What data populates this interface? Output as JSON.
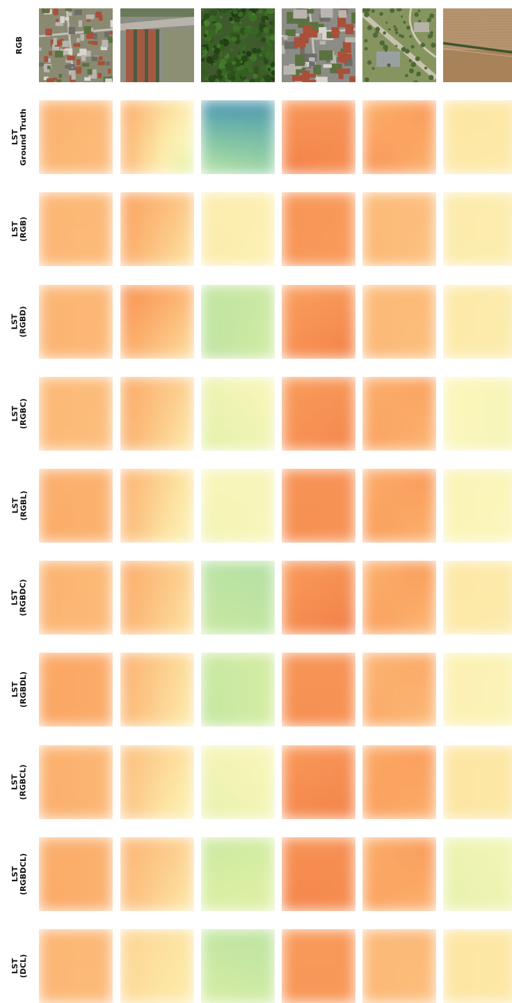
{
  "colormap": [
    "#3a86b4",
    "#72b9a7",
    "#a8dba3",
    "#d8eea2",
    "#fbf6bb",
    "#fde6a4",
    "#fcc584",
    "#fba562",
    "#f58a4e",
    "#e9613c"
  ],
  "rows": [
    {
      "id": "rgb",
      "label_lines": [
        "RGB"
      ],
      "kind": "aerial",
      "tiles": [
        {
          "scene": "residential"
        },
        {
          "scene": "river-buildings"
        },
        {
          "scene": "forest"
        },
        {
          "scene": "dense-urban"
        },
        {
          "scene": "park-road"
        },
        {
          "scene": "farmland"
        }
      ]
    },
    {
      "id": "ground-truth",
      "label_lines": [
        "LST",
        "Ground Truth"
      ],
      "kind": "lst",
      "tiles": [
        {
          "tl": 0.74,
          "tr": 0.71,
          "bl": 0.72,
          "br": 0.7
        },
        {
          "tl": 0.76,
          "tr": 0.52,
          "bl": 0.74,
          "br": 0.3
        },
        {
          "tl": 0.02,
          "tr": 0.03,
          "bl": 0.26,
          "br": 0.2
        },
        {
          "tl": 0.83,
          "tr": 0.86,
          "bl": 0.93,
          "br": 0.88
        },
        {
          "tl": 0.72,
          "tr": 0.84,
          "bl": 0.86,
          "br": 0.72
        },
        {
          "tl": 0.56,
          "tr": 0.55,
          "bl": 0.54,
          "br": 0.53
        }
      ]
    },
    {
      "id": "rgb-pred",
      "label_lines": [
        "LST",
        "(RGB)"
      ],
      "kind": "lst",
      "tiles": [
        {
          "tl": 0.72,
          "tr": 0.71,
          "bl": 0.72,
          "br": 0.7
        },
        {
          "tl": 0.79,
          "tr": 0.66,
          "bl": 0.76,
          "br": 0.55
        },
        {
          "tl": 0.51,
          "tr": 0.49,
          "bl": 0.52,
          "br": 0.48
        },
        {
          "tl": 0.85,
          "tr": 0.82,
          "bl": 0.84,
          "br": 0.82
        },
        {
          "tl": 0.7,
          "tr": 0.7,
          "bl": 0.72,
          "br": 0.67
        },
        {
          "tl": 0.53,
          "tr": 0.51,
          "bl": 0.52,
          "br": 0.5
        }
      ]
    },
    {
      "id": "rgbd-pred",
      "label_lines": [
        "LST",
        "(RGBD)"
      ],
      "kind": "lst",
      "tiles": [
        {
          "tl": 0.72,
          "tr": 0.72,
          "bl": 0.73,
          "br": 0.71
        },
        {
          "tl": 0.86,
          "tr": 0.72,
          "bl": 0.76,
          "br": 0.58
        },
        {
          "tl": 0.28,
          "tr": 0.3,
          "bl": 0.27,
          "br": 0.32
        },
        {
          "tl": 0.8,
          "tr": 0.84,
          "bl": 0.87,
          "br": 0.92
        },
        {
          "tl": 0.7,
          "tr": 0.71,
          "bl": 0.72,
          "br": 0.68
        },
        {
          "tl": 0.54,
          "tr": 0.52,
          "bl": 0.53,
          "br": 0.51
        }
      ]
    },
    {
      "id": "rgbc-pred",
      "label_lines": [
        "LST",
        "(RGBC)"
      ],
      "kind": "lst",
      "tiles": [
        {
          "tl": 0.71,
          "tr": 0.7,
          "bl": 0.71,
          "br": 0.69
        },
        {
          "tl": 0.77,
          "tr": 0.62,
          "bl": 0.75,
          "br": 0.53
        },
        {
          "tl": 0.4,
          "tr": 0.44,
          "bl": 0.37,
          "br": 0.41
        },
        {
          "tl": 0.82,
          "tr": 0.85,
          "bl": 0.86,
          "br": 0.9
        },
        {
          "tl": 0.74,
          "tr": 0.8,
          "bl": 0.8,
          "br": 0.72
        },
        {
          "tl": 0.45,
          "tr": 0.43,
          "bl": 0.45,
          "br": 0.42
        }
      ]
    },
    {
      "id": "rgbl-pred",
      "label_lines": [
        "LST",
        "(RGBL)"
      ],
      "kind": "lst",
      "tiles": [
        {
          "tl": 0.74,
          "tr": 0.74,
          "bl": 0.76,
          "br": 0.73
        },
        {
          "tl": 0.74,
          "tr": 0.55,
          "bl": 0.72,
          "br": 0.46
        },
        {
          "tl": 0.44,
          "tr": 0.43,
          "bl": 0.41,
          "br": 0.44
        },
        {
          "tl": 0.85,
          "tr": 0.86,
          "bl": 0.87,
          "br": 0.85
        },
        {
          "tl": 0.74,
          "tr": 0.84,
          "bl": 0.82,
          "br": 0.72
        },
        {
          "tl": 0.47,
          "tr": 0.45,
          "bl": 0.46,
          "br": 0.44
        }
      ]
    },
    {
      "id": "rgbdc-pred",
      "label_lines": [
        "LST",
        "(RGBDC)"
      ],
      "kind": "lst",
      "tiles": [
        {
          "tl": 0.73,
          "tr": 0.71,
          "bl": 0.73,
          "br": 0.7
        },
        {
          "tl": 0.76,
          "tr": 0.62,
          "bl": 0.74,
          "br": 0.56
        },
        {
          "tl": 0.26,
          "tr": 0.25,
          "bl": 0.3,
          "br": 0.28
        },
        {
          "tl": 0.82,
          "tr": 0.86,
          "bl": 0.88,
          "br": 0.93
        },
        {
          "tl": 0.72,
          "tr": 0.84,
          "bl": 0.82,
          "br": 0.7
        },
        {
          "tl": 0.55,
          "tr": 0.53,
          "bl": 0.54,
          "br": 0.52
        }
      ]
    },
    {
      "id": "rgbdl-pred",
      "label_lines": [
        "LST",
        "(RGBDL)"
      ],
      "kind": "lst",
      "tiles": [
        {
          "tl": 0.77,
          "tr": 0.76,
          "bl": 0.78,
          "br": 0.75
        },
        {
          "tl": 0.74,
          "tr": 0.58,
          "bl": 0.72,
          "br": 0.52
        },
        {
          "tl": 0.3,
          "tr": 0.32,
          "bl": 0.28,
          "br": 0.33
        },
        {
          "tl": 0.84,
          "tr": 0.85,
          "bl": 0.87,
          "br": 0.86
        },
        {
          "tl": 0.72,
          "tr": 0.78,
          "bl": 0.77,
          "br": 0.7
        },
        {
          "tl": 0.49,
          "tr": 0.47,
          "bl": 0.48,
          "br": 0.46
        }
      ]
    },
    {
      "id": "rgbcl-pred",
      "label_lines": [
        "LST",
        "(RGBCL)"
      ],
      "kind": "lst",
      "tiles": [
        {
          "tl": 0.74,
          "tr": 0.72,
          "bl": 0.75,
          "br": 0.71
        },
        {
          "tl": 0.7,
          "tr": 0.56,
          "bl": 0.68,
          "br": 0.47
        },
        {
          "tl": 0.42,
          "tr": 0.44,
          "bl": 0.38,
          "br": 0.42
        },
        {
          "tl": 0.83,
          "tr": 0.86,
          "bl": 0.89,
          "br": 0.91
        },
        {
          "tl": 0.76,
          "tr": 0.82,
          "bl": 0.81,
          "br": 0.74
        },
        {
          "tl": 0.56,
          "tr": 0.55,
          "bl": 0.56,
          "br": 0.54
        }
      ]
    },
    {
      "id": "rgbdcl-pred",
      "label_lines": [
        "LST",
        "(RGBDCL)"
      ],
      "kind": "lst",
      "tiles": [
        {
          "tl": 0.75,
          "tr": 0.74,
          "bl": 0.77,
          "br": 0.73
        },
        {
          "tl": 0.73,
          "tr": 0.62,
          "bl": 0.7,
          "br": 0.54
        },
        {
          "tl": 0.3,
          "tr": 0.32,
          "bl": 0.34,
          "br": 0.36
        },
        {
          "tl": 0.86,
          "tr": 0.87,
          "bl": 0.91,
          "br": 0.88
        },
        {
          "tl": 0.74,
          "tr": 0.84,
          "bl": 0.8,
          "br": 0.72
        },
        {
          "tl": 0.4,
          "tr": 0.42,
          "bl": 0.38,
          "br": 0.41
        }
      ]
    },
    {
      "id": "dcl-pred",
      "label_lines": [
        "LST",
        "(DCL)"
      ],
      "kind": "lst",
      "tiles": [
        {
          "tl": 0.72,
          "tr": 0.71,
          "bl": 0.72,
          "br": 0.7
        },
        {
          "tl": 0.62,
          "tr": 0.56,
          "bl": 0.6,
          "br": 0.52
        },
        {
          "tl": 0.28,
          "tr": 0.27,
          "bl": 0.33,
          "br": 0.31
        },
        {
          "tl": 0.82,
          "tr": 0.83,
          "bl": 0.84,
          "br": 0.83
        },
        {
          "tl": 0.7,
          "tr": 0.72,
          "bl": 0.72,
          "br": 0.68
        },
        {
          "tl": 0.56,
          "tr": 0.55,
          "bl": 0.56,
          "br": 0.54
        }
      ]
    }
  ]
}
